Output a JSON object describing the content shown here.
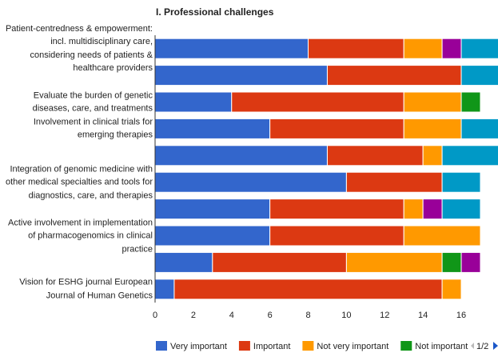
{
  "chart_data": {
    "type": "stacked-bar-horizontal",
    "title": "I. Professional challenges",
    "categories": [
      "Patient-centredness & empowerment: incl. multidisciplinary care, considering needs of patients & healthcare providers",
      null,
      "Evaluate the burden of genetic diseases, care, and treatments",
      "Involvement in clinical trials for emerging therapies",
      null,
      "Integration of genomic medicine with other medical specialties and tools for diagnostics, care, and therapies",
      null,
      "Active involvement in implementation of pharmacogenomics in clinical practice",
      null,
      "Vision for ESHG journal European Journal of Human Genetics"
    ],
    "series": [
      {
        "name": "Very important",
        "color": "#3366cc",
        "values": [
          8,
          9,
          4,
          6,
          9,
          10,
          6,
          6,
          3,
          1
        ]
      },
      {
        "name": "Important",
        "color": "#dc3912",
        "values": [
          5,
          7,
          9,
          7,
          5,
          5,
          7,
          7,
          7,
          14
        ]
      },
      {
        "name": "Not very important",
        "color": "#ff9900",
        "values": [
          2,
          0,
          3,
          3,
          1,
          0,
          1,
          4,
          5,
          1
        ]
      },
      {
        "name": "Not important",
        "color": "#109618",
        "values": [
          0,
          0,
          1,
          0,
          0,
          0,
          0,
          0,
          1,
          0
        ]
      },
      {
        "color": "#990099",
        "values": [
          1,
          0,
          0,
          0,
          0,
          0,
          1,
          0,
          1,
          0
        ]
      },
      {
        "color": "#0099c6",
        "values": [
          2,
          2,
          0,
          2,
          3,
          2,
          2,
          0,
          0,
          0
        ]
      }
    ],
    "xlim": [
      0,
      18
    ],
    "xticks": [
      0,
      2,
      4,
      6,
      8,
      10,
      12,
      14,
      16
    ],
    "legend": "bottom",
    "pager": "1/2"
  }
}
